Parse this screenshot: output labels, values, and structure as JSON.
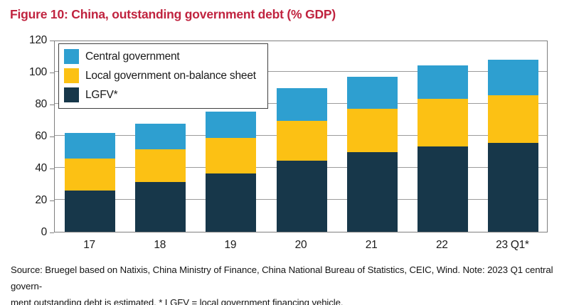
{
  "header": {
    "title": "Figure 10: China, outstanding government debt (% GDP)"
  },
  "chart_data": {
    "type": "bar",
    "stacked": true,
    "title": "Figure 10: China, outstanding government debt (% GDP)",
    "categories": [
      "17",
      "18",
      "19",
      "20",
      "21",
      "22",
      "23 Q1*"
    ],
    "series": [
      {
        "name": "LGFV*",
        "color": "#17374a",
        "values": [
          26,
          31,
          36.5,
          44.5,
          50,
          53.5,
          55.5
        ]
      },
      {
        "name": "Local government on-balance sheet",
        "color": "#fcc114",
        "values": [
          20,
          20.5,
          22,
          25,
          27,
          29.5,
          30
        ]
      },
      {
        "name": "Central government",
        "color": "#2e9fd0",
        "values": [
          16,
          16,
          16.5,
          20.5,
          20,
          21,
          22
        ]
      }
    ],
    "totals": [
      62,
      67.5,
      75,
      90,
      97,
      104,
      107.5
    ],
    "xlabel": "",
    "ylabel": "",
    "ylim": [
      0,
      120
    ],
    "ytick_step": 20,
    "grid": true,
    "legend_position": "top-left",
    "legend_order": [
      "Central government",
      "Local government on-balance sheet",
      "LGFV*"
    ]
  },
  "footer": {
    "line1": "Source: Bruegel based on Natixis, China Ministry of Finance, China National Bureau of Statistics, CEIC, Wind. Note: 2023 Q1 central govern-",
    "line2": "ment outstanding debt is estimated. * LGFV = local government financing vehicle."
  },
  "colors": {
    "title": "#c0233f",
    "axis_border": "#7f7f7f",
    "gridline": "#9b9b9b",
    "text": "#1a1a1a"
  }
}
